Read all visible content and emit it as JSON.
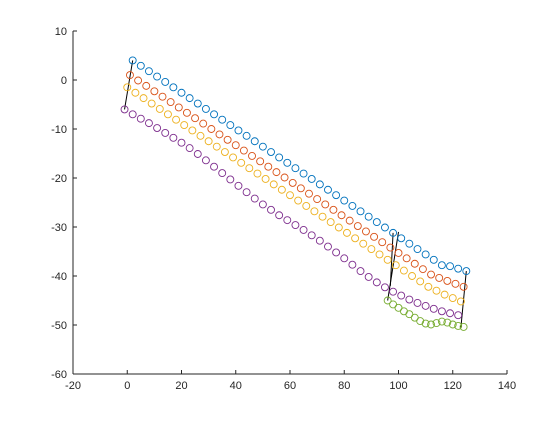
{
  "chart_data": {
    "type": "scatter",
    "title": "",
    "xlabel": "",
    "ylabel": "",
    "xlim": [
      -20,
      140
    ],
    "ylim": [
      -60,
      10
    ],
    "xticks": [
      -20,
      0,
      20,
      40,
      60,
      80,
      100,
      120,
      140
    ],
    "yticks": [
      -60,
      -50,
      -40,
      -30,
      -20,
      -10,
      0,
      10
    ],
    "grid": false,
    "legend": "none",
    "marker": "open-circle",
    "series": [
      {
        "color": "#0072BD",
        "x": [
          2,
          5,
          8,
          11,
          14,
          17,
          20,
          23,
          26,
          29,
          32,
          35,
          38,
          41,
          44,
          47,
          50,
          53,
          56,
          59,
          62,
          65,
          68,
          71,
          74,
          77,
          80,
          83,
          86,
          89,
          92,
          95,
          98,
          101,
          104,
          107,
          110,
          113,
          116,
          119,
          122,
          125
        ],
        "y": [
          4.0,
          2.9,
          1.8,
          0.7,
          -0.4,
          -1.5,
          -2.6,
          -3.7,
          -4.8,
          -5.9,
          -7.0,
          -8.1,
          -9.2,
          -10.3,
          -11.4,
          -12.5,
          -13.6,
          -14.7,
          -15.8,
          -16.9,
          -18.0,
          -19.1,
          -20.2,
          -21.3,
          -22.4,
          -23.5,
          -24.6,
          -25.7,
          -26.8,
          -27.9,
          -29.0,
          -30.1,
          -31.2,
          -32.3,
          -33.4,
          -34.5,
          -35.6,
          -36.7,
          -37.8,
          -38.0,
          -38.5,
          -39.0
        ]
      },
      {
        "color": "#D95319",
        "x": [
          1,
          4,
          7,
          10,
          13,
          16,
          19,
          22,
          25,
          28,
          31,
          34,
          37,
          40,
          43,
          46,
          49,
          52,
          55,
          58,
          61,
          64,
          67,
          70,
          73,
          76,
          79,
          82,
          85,
          88,
          91,
          94,
          97,
          100,
          103,
          106,
          109,
          112,
          115,
          118,
          121,
          124
        ],
        "y": [
          1.0,
          -0.1,
          -1.2,
          -2.3,
          -3.4,
          -4.5,
          -5.6,
          -6.7,
          -7.8,
          -8.9,
          -10.0,
          -11.1,
          -12.2,
          -13.3,
          -14.4,
          -15.5,
          -16.6,
          -17.7,
          -18.8,
          -19.9,
          -21.0,
          -22.1,
          -23.2,
          -24.3,
          -25.4,
          -26.5,
          -27.6,
          -28.7,
          -29.8,
          -30.9,
          -32.0,
          -33.1,
          -34.2,
          -35.3,
          -36.4,
          -37.5,
          -38.6,
          -39.7,
          -40.4,
          -41.0,
          -41.6,
          -42.2
        ]
      },
      {
        "color": "#EDB120",
        "x": [
          0,
          3,
          6,
          9,
          12,
          15,
          18,
          21,
          24,
          27,
          30,
          33,
          36,
          39,
          42,
          45,
          48,
          51,
          54,
          57,
          60,
          63,
          66,
          69,
          72,
          75,
          78,
          81,
          84,
          87,
          90,
          93,
          96,
          99,
          102,
          105,
          108,
          111,
          114,
          117,
          120,
          123
        ],
        "y": [
          -1.5,
          -2.6,
          -3.7,
          -4.8,
          -5.9,
          -7.0,
          -8.1,
          -9.2,
          -10.3,
          -11.4,
          -12.5,
          -13.6,
          -14.7,
          -15.8,
          -16.9,
          -18.0,
          -19.1,
          -20.2,
          -21.3,
          -22.4,
          -23.5,
          -24.6,
          -25.7,
          -26.8,
          -27.9,
          -29.0,
          -30.1,
          -31.2,
          -32.3,
          -33.4,
          -34.5,
          -35.6,
          -36.7,
          -37.8,
          -38.9,
          -40.0,
          -41.1,
          -42.2,
          -43.0,
          -43.8,
          -44.5,
          -45.2
        ]
      },
      {
        "color": "#7E2F8E",
        "x": [
          -1,
          2,
          5,
          8,
          11,
          14,
          17,
          20,
          23,
          26,
          29,
          32,
          35,
          38,
          41,
          44,
          47,
          50,
          53,
          56,
          59,
          62,
          65,
          68,
          71,
          74,
          77,
          80,
          83,
          86,
          89,
          92,
          95,
          98,
          101,
          104,
          107,
          110,
          113,
          116,
          119,
          122
        ],
        "y": [
          -6.0,
          -7.0,
          -7.9,
          -8.8,
          -9.8,
          -10.8,
          -11.8,
          -12.8,
          -13.9,
          -15.1,
          -16.4,
          -17.7,
          -19.0,
          -20.3,
          -21.6,
          -22.9,
          -24.2,
          -25.4,
          -26.5,
          -27.6,
          -28.6,
          -29.6,
          -30.6,
          -31.7,
          -32.8,
          -34.0,
          -35.2,
          -36.4,
          -37.7,
          -39.0,
          -40.2,
          -41.3,
          -42.3,
          -43.2,
          -44.0,
          -44.8,
          -45.5,
          -46.1,
          -46.7,
          -47.2,
          -47.6,
          -48.0
        ]
      },
      {
        "color": "#77AC30",
        "x": [
          96,
          98,
          100,
          102,
          104,
          106,
          108,
          110,
          112,
          114,
          116,
          118,
          120,
          122,
          124
        ],
        "y": [
          -45.0,
          -45.8,
          -46.5,
          -47.2,
          -47.8,
          -48.5,
          -49.2,
          -49.7,
          -49.9,
          -49.6,
          -49.3,
          -49.5,
          -49.9,
          -50.2,
          -50.4
        ]
      }
    ],
    "connectors": [
      {
        "x": [
          2,
          -1
        ],
        "y": [
          4.0,
          -6.0
        ]
      },
      {
        "x": [
          100,
          96
        ],
        "y": [
          -31.0,
          -45.0
        ]
      },
      {
        "x": [
          98,
          97
        ],
        "y": [
          -31.2,
          -42.0
        ]
      },
      {
        "x": [
          125,
          123
        ],
        "y": [
          -39.0,
          -50.5
        ]
      }
    ]
  }
}
